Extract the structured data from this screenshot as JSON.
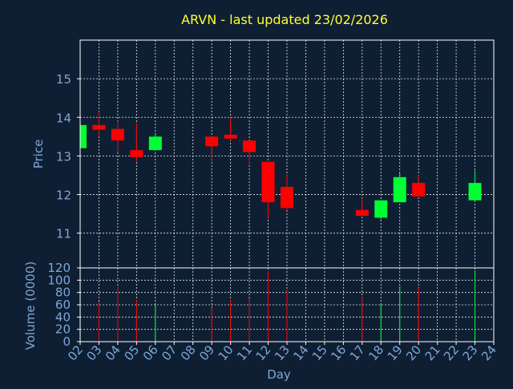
{
  "colors": {
    "background": "#0f1f33",
    "title": "#ffff33",
    "axis_text": "#7fa6d6",
    "frame": "#ffffff",
    "grid": "#ffffff",
    "up": "#00ff33",
    "down": "#ff0000",
    "wick_up": "#00ff33",
    "wick_down": "#ff0000"
  },
  "chart_data": [
    {
      "type": "candlestick",
      "title": "ARVN - last updated 23/02/2026",
      "ylabel": "Price",
      "ylim": [
        10.1,
        16.0
      ],
      "yticks": [
        11,
        12,
        13,
        14,
        15
      ],
      "grid": true,
      "x_categories": [
        "02",
        "03",
        "04",
        "05",
        "06",
        "07",
        "08",
        "09",
        "10",
        "11",
        "12",
        "13",
        "14",
        "15",
        "16",
        "17",
        "18",
        "19",
        "20",
        "21",
        "22",
        "23",
        "24"
      ],
      "candles": [
        {
          "day": "02",
          "open": 13.2,
          "close": 13.8,
          "high": 13.8,
          "low": 13.2
        },
        {
          "day": "03",
          "open": 13.8,
          "close": 13.68,
          "high": 14.15,
          "low": 13.5
        },
        {
          "day": "04",
          "open": 13.7,
          "close": 13.4,
          "high": 13.9,
          "low": 13.1
        },
        {
          "day": "05",
          "open": 13.15,
          "close": 12.97,
          "high": 13.85,
          "low": 12.85
        },
        {
          "day": "06",
          "open": 13.15,
          "close": 13.5,
          "high": 13.6,
          "low": 13.15
        },
        {
          "day": "09",
          "open": 13.5,
          "close": 13.25,
          "high": 13.5,
          "low": 12.9
        },
        {
          "day": "10",
          "open": 13.55,
          "close": 13.45,
          "high": 14.0,
          "low": 13.4
        },
        {
          "day": "11",
          "open": 13.4,
          "close": 13.1,
          "high": 13.4,
          "low": 12.75
        },
        {
          "day": "12",
          "open": 12.85,
          "close": 11.8,
          "high": 12.85,
          "low": 11.4
        },
        {
          "day": "13",
          "open": 12.2,
          "close": 11.65,
          "high": 12.5,
          "low": 11.6
        },
        {
          "day": "17",
          "open": 11.6,
          "close": 11.45,
          "high": 11.9,
          "low": 11.45
        },
        {
          "day": "18",
          "open": 11.4,
          "close": 11.85,
          "high": 11.85,
          "low": 11.35
        },
        {
          "day": "19",
          "open": 11.8,
          "close": 12.45,
          "high": 12.55,
          "low": 11.8
        },
        {
          "day": "20",
          "open": 12.3,
          "close": 11.95,
          "high": 12.5,
          "low": 11.95
        },
        {
          "day": "23",
          "open": 11.85,
          "close": 12.3,
          "high": 12.62,
          "low": 11.85
        }
      ]
    },
    {
      "type": "bar",
      "ylabel": "Volume (0000)",
      "xlabel": "Day",
      "ylim": [
        0,
        120
      ],
      "yticks": [
        0,
        20,
        40,
        60,
        80,
        100,
        120
      ],
      "grid": true,
      "x_categories": [
        "02",
        "03",
        "04",
        "05",
        "06",
        "07",
        "08",
        "09",
        "10",
        "11",
        "12",
        "13",
        "14",
        "15",
        "16",
        "17",
        "18",
        "19",
        "20",
        "21",
        "22",
        "23",
        "24"
      ],
      "bars": [
        {
          "day": "03",
          "value": 65,
          "direction": "down"
        },
        {
          "day": "04",
          "value": 90,
          "direction": "down"
        },
        {
          "day": "05",
          "value": 68,
          "direction": "down"
        },
        {
          "day": "06",
          "value": 60,
          "direction": "up"
        },
        {
          "day": "09",
          "value": 55,
          "direction": "down"
        },
        {
          "day": "10",
          "value": 68,
          "direction": "down"
        },
        {
          "day": "11",
          "value": 70,
          "direction": "down"
        },
        {
          "day": "12",
          "value": 115,
          "direction": "down"
        },
        {
          "day": "13",
          "value": 85,
          "direction": "down"
        },
        {
          "day": "17",
          "value": 73,
          "direction": "down"
        },
        {
          "day": "18",
          "value": 60,
          "direction": "up"
        },
        {
          "day": "19",
          "value": 90,
          "direction": "up"
        },
        {
          "day": "20",
          "value": 88,
          "direction": "down"
        },
        {
          "day": "23",
          "value": 116,
          "direction": "up"
        }
      ]
    }
  ]
}
